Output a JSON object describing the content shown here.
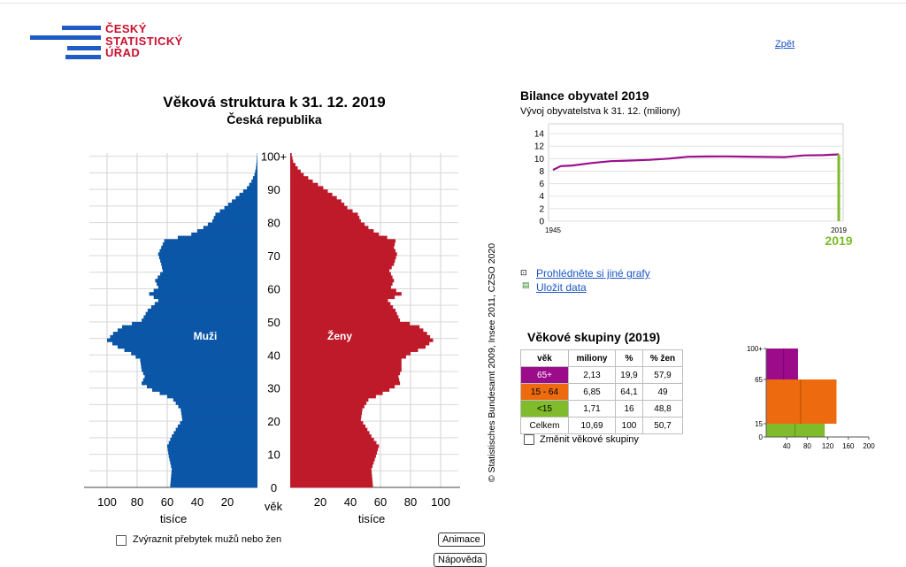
{
  "logo": {
    "line1": "ČESKÝ",
    "line2": "STATISTICKÝ",
    "line3": "ÚŘAD"
  },
  "nav": {
    "back": "Zpět"
  },
  "pyramid": {
    "title": "Věková struktura k 31. 12. 2019",
    "subtitle": "Česká republika",
    "male_label": "Muži",
    "female_label": "Ženy",
    "age_axis_label": "věk",
    "x_unit": "tisíce",
    "copyright": "© Statistisches Bundesamt 2009, Insee 2011, CZSO 2020"
  },
  "balance": {
    "title": "Bilance obyvatel 2019",
    "subtitle": "Vývoj obyvatelstva k 31. 12. (miliony)"
  },
  "links": {
    "other_charts": "Prohlédněte si jiné grafy",
    "save_data": "Uložit data"
  },
  "groups": {
    "title": "Věkové skupiny (2019)",
    "headers": [
      "věk",
      "miliony",
      "%",
      "% žen"
    ],
    "rows": [
      {
        "age": "65+",
        "mil": "2,13",
        "pct": "19,9",
        "women": "57,9"
      },
      {
        "age": "15 - 64",
        "mil": "6,85",
        "pct": "64,1",
        "women": "49"
      },
      {
        "age": "<15",
        "mil": "1,71",
        "pct": "16",
        "women": "48,8"
      },
      {
        "age": "Celkem",
        "mil": "10,69",
        "pct": "100",
        "women": "50,7"
      }
    ],
    "change_label": "Změnit věkové skupiny"
  },
  "controls": {
    "highlight_label": "Zvýraznit přebytek mužů nebo žen",
    "animate_label": "Animace",
    "help_label": "Nápověda"
  },
  "colors": {
    "male": "#0b56a6",
    "female": "#be1a2a",
    "old": "#9c0b8a",
    "working": "#ed6a0e",
    "young": "#7fbb2a",
    "line": "#9b0f8c",
    "year": "#7dbb2c"
  },
  "chart_data": [
    {
      "type": "bar",
      "title": "Věková struktura k 31. 12. 2019",
      "subtitle": "Česká republika",
      "xlabel": "tisíce",
      "ylabel": "věk",
      "age_ticks": [
        "0",
        "10",
        "20",
        "30",
        "40",
        "50",
        "60",
        "70",
        "80",
        "90",
        "100+"
      ],
      "x_ticks": [
        100,
        80,
        60,
        40,
        20
      ],
      "xlim": [
        0,
        110
      ],
      "age_anchors": [
        0,
        5,
        9,
        12,
        15,
        18,
        20,
        23,
        26,
        27,
        29,
        31,
        33,
        35,
        38,
        40,
        42,
        44,
        46,
        48,
        50,
        53,
        56,
        58,
        60,
        62,
        65,
        67,
        70,
        72,
        74,
        76,
        78,
        80,
        82,
        84,
        86,
        88,
        90,
        92,
        94,
        96,
        98,
        100
      ],
      "series": [
        {
          "name": "Muži",
          "values": [
            58,
            57,
            59,
            60,
            57,
            53,
            50,
            51,
            56,
            60,
            70,
            77,
            75,
            77,
            78,
            84,
            93,
            100,
            96,
            90,
            77,
            73,
            66,
            72,
            66,
            68,
            63,
            64,
            66,
            64,
            62,
            44,
            36,
            30,
            28,
            22,
            17,
            12,
            7,
            4,
            2,
            1,
            0.5,
            0.2
          ]
        },
        {
          "name": "Ženy",
          "values": [
            55,
            54,
            57,
            59,
            54,
            50,
            47,
            48,
            52,
            57,
            66,
            73,
            72,
            74,
            74,
            80,
            90,
            95,
            91,
            86,
            73,
            70,
            65,
            74,
            67,
            69,
            66,
            69,
            71,
            69,
            70,
            59,
            52,
            47,
            45,
            38,
            34,
            28,
            22,
            15,
            9,
            5,
            2,
            1
          ]
        }
      ]
    },
    {
      "type": "line",
      "title": "Bilance obyvatel 2019",
      "subtitle": "Vývoj obyvatelstva k 31. 12. (miliony)",
      "ylim": [
        0,
        15
      ],
      "y_ticks": [
        0,
        2,
        4,
        6,
        8,
        10,
        12,
        14
      ],
      "x_ticks": [
        "1945",
        "2019"
      ],
      "highlight_year": "2019",
      "series": [
        {
          "x": [
            1945,
            1947,
            1950,
            1955,
            1960,
            1965,
            1970,
            1975,
            1980,
            1985,
            1990,
            1995,
            2000,
            2005,
            2010,
            2015,
            2019
          ],
          "values": [
            8.2,
            8.8,
            8.9,
            9.3,
            9.6,
            9.7,
            9.8,
            10.0,
            10.3,
            10.34,
            10.36,
            10.32,
            10.27,
            10.25,
            10.52,
            10.55,
            10.69
          ]
        }
      ]
    },
    {
      "type": "bar",
      "title": "",
      "xlim": [
        0,
        200
      ],
      "x_ticks": [
        40,
        80,
        120,
        160,
        200
      ],
      "y_ticks": [
        "0",
        "15",
        "65",
        "100+"
      ],
      "groups": [
        {
          "from": 0,
          "to": 15,
          "avg_female": 56,
          "avg_male": 58
        },
        {
          "from": 15,
          "to": 65,
          "avg_female": 67,
          "avg_male": 70
        },
        {
          "from": 65,
          "to": 100,
          "avg_female": 34,
          "avg_male": 28
        }
      ]
    }
  ]
}
